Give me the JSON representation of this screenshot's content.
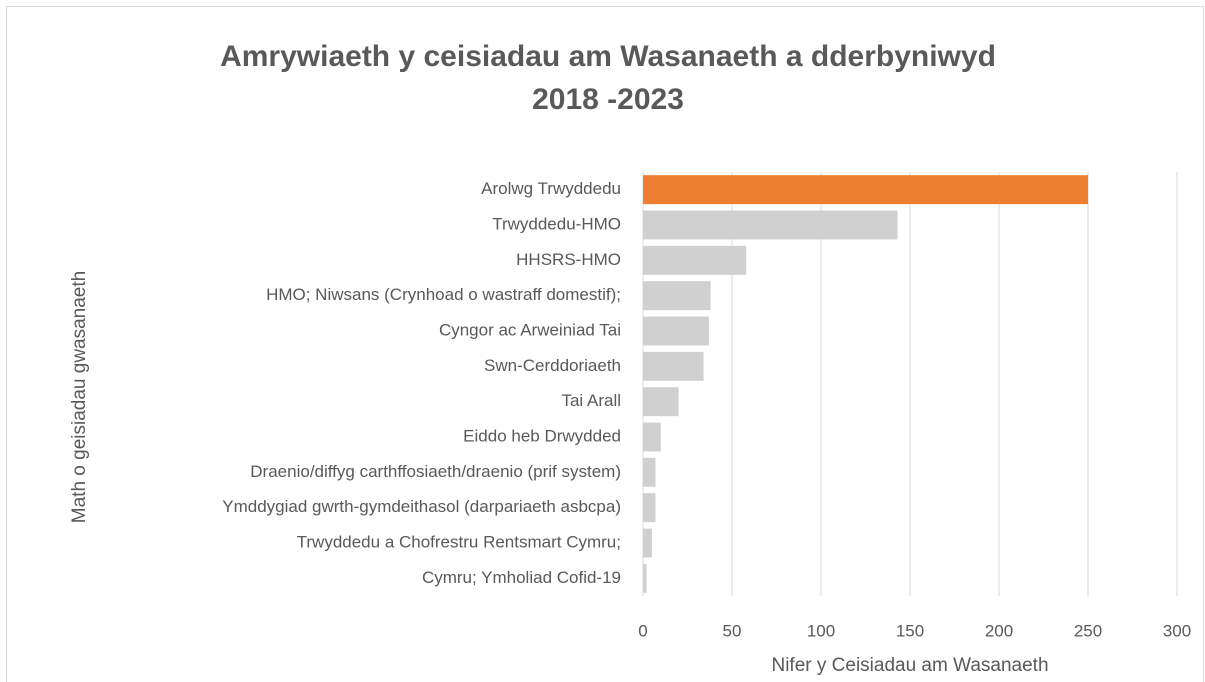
{
  "chart_data": {
    "type": "hbar",
    "title": [
      "Amrywiaeth y ceisiadau am Wasanaeth a dderbyniwyd",
      "2018 -2023"
    ],
    "x_label": "Nifer y Ceisiadau am Wasanaeth",
    "y_label": "Math o geisiadau gwasanaeth",
    "categories": [
      "Arolwg Trwyddedu",
      "Trwyddedu-HMO",
      "HHSRS-HMO",
      "HMO; Niwsans (Crynhoad o wastraff domestif);",
      "Cyngor ac Arweiniad Tai",
      "Swn-Cerddoriaeth",
      "Tai Arall",
      "Eiddo heb Drwydded",
      "Draenio/diffyg carthffosiaeth/draenio (prif system)",
      "Ymddygiad gwrth-gymdeithasol (darpariaeth asbcpa)",
      "Trwyddedu a Chofrestru Rentsmart Cymru;",
      "Cymru; Ymholiad Cofid-19"
    ],
    "values": [
      250,
      143,
      58,
      38,
      37,
      34,
      20,
      10,
      7,
      7,
      5,
      2
    ],
    "colors": [
      "#ed7d31",
      "#d0d0d0",
      "#d0d0d0",
      "#d0d0d0",
      "#d0d0d0",
      "#d0d0d0",
      "#d0d0d0",
      "#d0d0d0",
      "#d0d0d0",
      "#d0d0d0",
      "#d0d0d0",
      "#d0d0d0"
    ],
    "xlim": [
      0,
      300
    ],
    "xticks": [
      0,
      50,
      100,
      150,
      200,
      250,
      300
    ],
    "grid": true
  }
}
